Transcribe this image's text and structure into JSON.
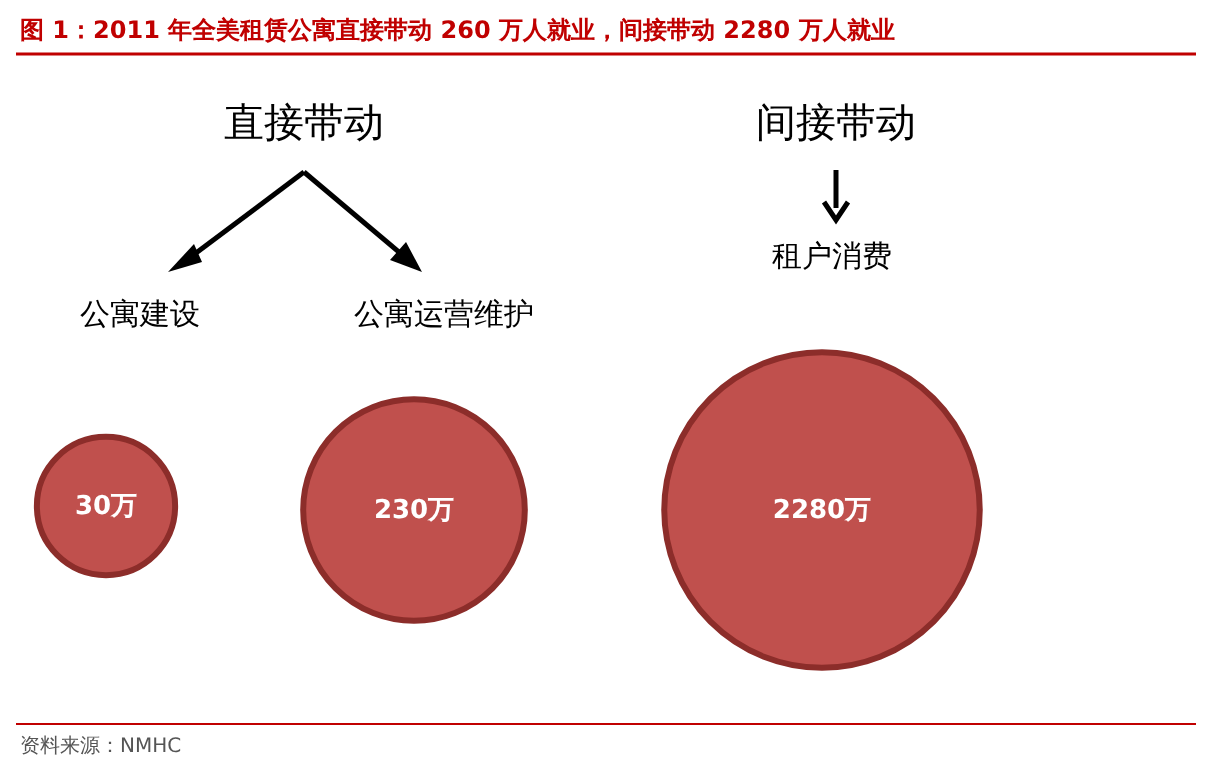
{
  "chart_data": {
    "type": "other",
    "title": "图 1：2011 年全美租赁公寓直接带动 260 万人就业，间接带动 2280 万人就业",
    "categories": [
      "公寓建设",
      "公寓运营维护",
      "租户消费"
    ],
    "values": [
      30,
      230,
      2280
    ],
    "value_labels": [
      "30万",
      "230万",
      "2280万"
    ],
    "colors": [
      "#c0504d",
      "#c0504d",
      "#c0504d"
    ],
    "annotations": [
      "直接带动",
      "间接带动",
      "资料来源：NMHC"
    ]
  }
}
